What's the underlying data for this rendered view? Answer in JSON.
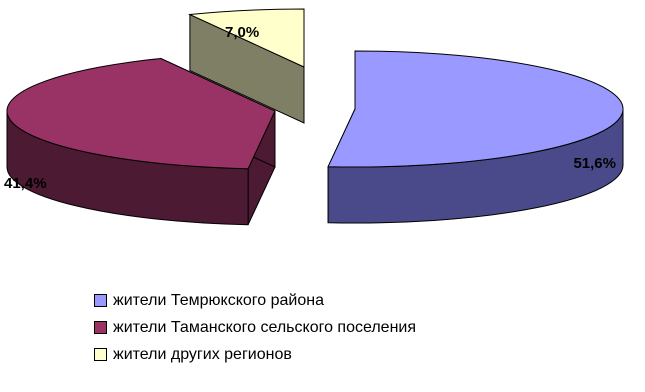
{
  "chart_data": {
    "type": "pie",
    "exploded": true,
    "three_d": true,
    "legend_position": "bottom",
    "slices": [
      {
        "label": "жители Темрюкского района",
        "value": 51.6,
        "value_label": "51,6%",
        "top_color": "#9999ff",
        "side_color": "#4a4a8a"
      },
      {
        "label": "жители Таманского сельского поселения",
        "value": 41.4,
        "value_label": "41,4%",
        "top_color": "#993366",
        "side_color": "#4d1a33"
      },
      {
        "label": "жители других регионов",
        "value": 7.0,
        "value_label": "7,0%",
        "top_color": "#ffffcc",
        "side_color": "#7f7f66"
      }
    ]
  }
}
